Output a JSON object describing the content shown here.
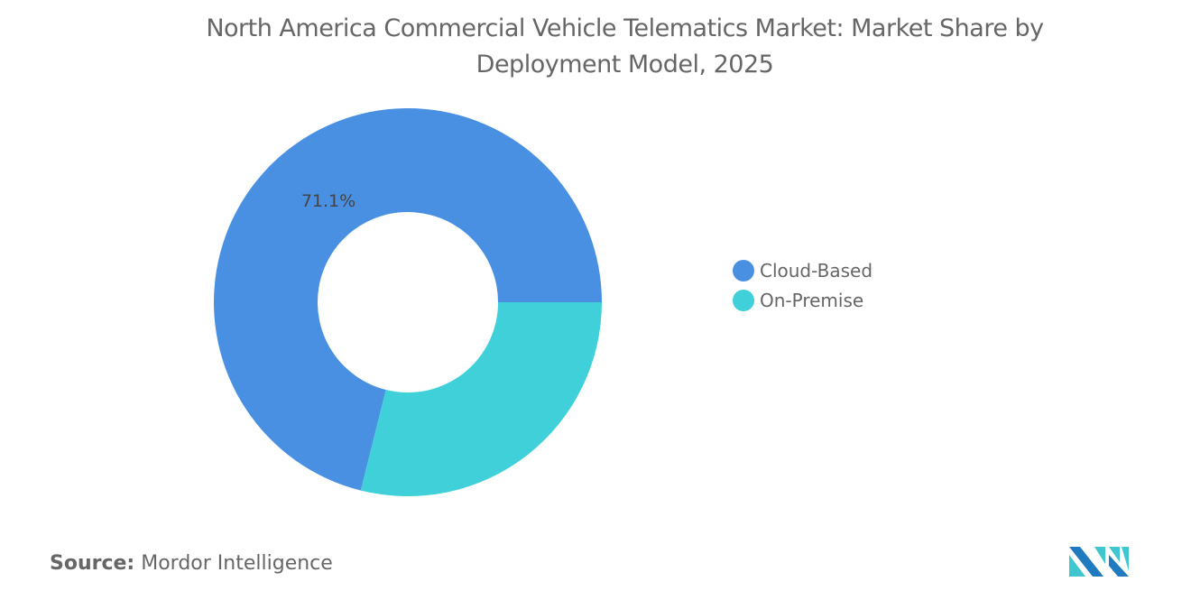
{
  "title": "North America Commercial Vehicle Telematics Market: Market Share by Deployment Model, 2025",
  "chart_data": {
    "type": "pie",
    "donut": true,
    "title": "North America Commercial Vehicle Telematics Market: Market Share by Deployment Model, 2025",
    "categories": [
      "Cloud-Based",
      "On-Premise"
    ],
    "values": [
      71.1,
      28.9
    ],
    "unit": "%",
    "data_labels": [
      "71.1%"
    ],
    "colors": [
      "#4a90e2",
      "#3fd0d9"
    ],
    "legend_position": "right"
  },
  "source": {
    "label": "Source:",
    "value": "Mordor Intelligence"
  },
  "logo": {
    "text": "Mordor Intelligence",
    "colors": [
      "#1f7ac0",
      "#3fc6cf"
    ]
  }
}
